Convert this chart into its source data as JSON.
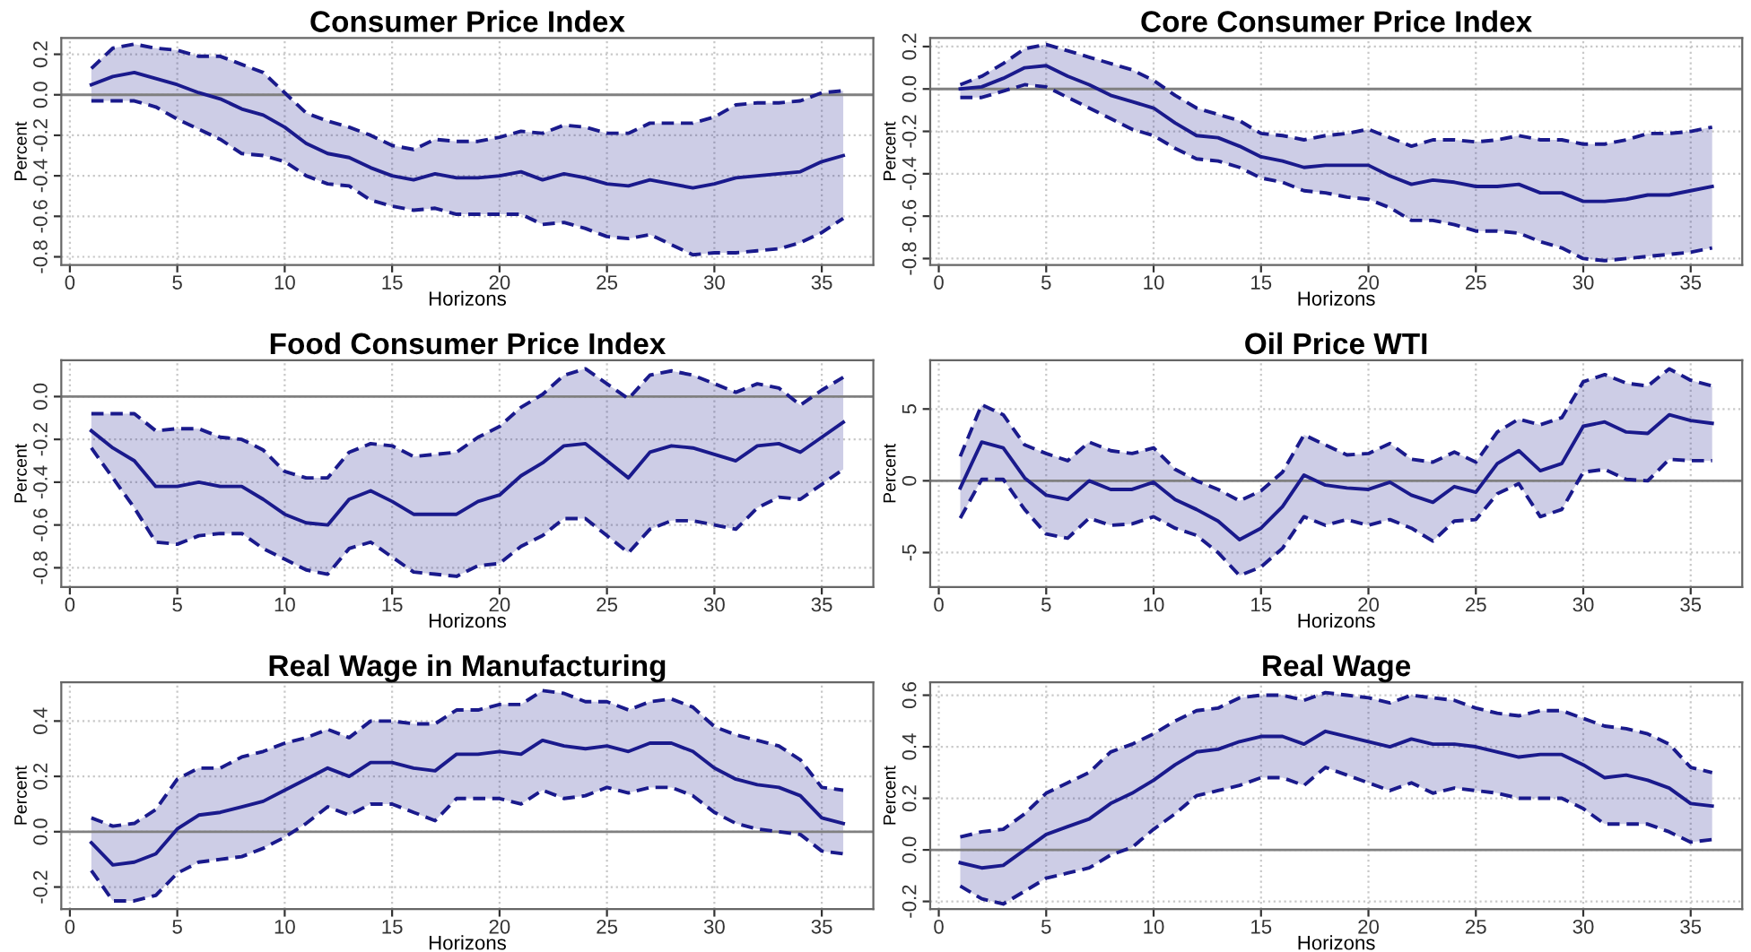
{
  "chart_data": [
    {
      "type": "line",
      "title": "Consumer Price Index",
      "xlabel": "Horizons",
      "ylabel": "Percent",
      "grid": true,
      "xlim": [
        -0.4,
        37.4
      ],
      "xticks": [
        0,
        5,
        10,
        15,
        20,
        25,
        30,
        35
      ],
      "ylim": [
        -0.84,
        0.28
      ],
      "yticks": [
        {
          "value": -0.8,
          "label": "-0.8"
        },
        {
          "value": -0.6,
          "label": "-0.6"
        },
        {
          "value": -0.4,
          "label": "-0.4"
        },
        {
          "value": -0.2,
          "label": "-0.2"
        },
        {
          "value": 0,
          "label": "0.0"
        },
        {
          "value": 0.2,
          "label": "0.2"
        }
      ],
      "ref_lines": [
        {
          "axis": "y",
          "value": 0,
          "color": "#808080"
        }
      ],
      "x": [
        1,
        2,
        3,
        4,
        5,
        6,
        7,
        8,
        9,
        10,
        11,
        12,
        13,
        14,
        15,
        16,
        17,
        18,
        19,
        20,
        21,
        22,
        23,
        24,
        25,
        26,
        27,
        28,
        29,
        30,
        31,
        32,
        33,
        34,
        35,
        36
      ],
      "series": [
        {
          "color": "#1a1a8c",
          "line_style": "solid",
          "values": [
            0.05,
            0.09,
            0.11,
            0.08,
            0.05,
            0.01,
            -0.02,
            -0.07,
            -0.1,
            -0.16,
            -0.24,
            -0.29,
            -0.31,
            -0.36,
            -0.4,
            -0.42,
            -0.39,
            -0.41,
            -0.41,
            -0.4,
            -0.38,
            -0.42,
            -0.39,
            -0.41,
            -0.44,
            -0.45,
            -0.42,
            -0.44,
            -0.46,
            -0.44,
            -0.41,
            -0.4,
            -0.39,
            -0.38,
            -0.33,
            -0.3
          ],
          "upper": [
            0.13,
            0.23,
            0.25,
            0.23,
            0.22,
            0.19,
            0.19,
            0.15,
            0.11,
            0.01,
            -0.09,
            -0.13,
            -0.16,
            -0.2,
            -0.25,
            -0.27,
            -0.22,
            -0.23,
            -0.23,
            -0.21,
            -0.18,
            -0.19,
            -0.15,
            -0.16,
            -0.19,
            -0.19,
            -0.14,
            -0.14,
            -0.14,
            -0.11,
            -0.05,
            -0.04,
            -0.04,
            -0.03,
            0.01,
            0.02
          ],
          "lower": [
            -0.03,
            -0.03,
            -0.03,
            -0.06,
            -0.12,
            -0.17,
            -0.22,
            -0.29,
            -0.3,
            -0.33,
            -0.4,
            -0.44,
            -0.45,
            -0.52,
            -0.55,
            -0.57,
            -0.56,
            -0.59,
            -0.59,
            -0.59,
            -0.59,
            -0.64,
            -0.63,
            -0.66,
            -0.7,
            -0.71,
            -0.69,
            -0.74,
            -0.79,
            -0.78,
            -0.78,
            -0.77,
            -0.76,
            -0.73,
            -0.68,
            -0.61
          ]
        },
        {
          "color": "#1a1a8c",
          "line_style": "dashed",
          "values": [
            0.13,
            0.23,
            0.25,
            0.23,
            0.22,
            0.19,
            0.19,
            0.15,
            0.11,
            0.01,
            -0.09,
            -0.13,
            -0.16,
            -0.2,
            -0.25,
            -0.27,
            -0.22,
            -0.23,
            -0.23,
            -0.21,
            -0.18,
            -0.19,
            -0.15,
            -0.16,
            -0.19,
            -0.19,
            -0.14,
            -0.14,
            -0.14,
            -0.11,
            -0.05,
            -0.04,
            -0.04,
            -0.03,
            0.01,
            0.02
          ]
        },
        {
          "color": "#1a1a8c",
          "line_style": "dashed",
          "values": [
            -0.03,
            -0.03,
            -0.03,
            -0.06,
            -0.12,
            -0.17,
            -0.22,
            -0.29,
            -0.3,
            -0.33,
            -0.4,
            -0.44,
            -0.45,
            -0.52,
            -0.55,
            -0.57,
            -0.56,
            -0.59,
            -0.59,
            -0.59,
            -0.59,
            -0.64,
            -0.63,
            -0.66,
            -0.7,
            -0.71,
            -0.69,
            -0.74,
            -0.79,
            -0.78,
            -0.78,
            -0.77,
            -0.76,
            -0.73,
            -0.68,
            -0.61
          ]
        }
      ]
    },
    {
      "type": "line",
      "title": "Core Consumer Price Index",
      "xlabel": "Horizons",
      "ylabel": "Percent",
      "grid": true,
      "xlim": [
        -0.4,
        37.4
      ],
      "xticks": [
        0,
        5,
        10,
        15,
        20,
        25,
        30,
        35
      ],
      "ylim": [
        -0.83,
        0.24
      ],
      "yticks": [
        {
          "value": -0.8,
          "label": "-0.8"
        },
        {
          "value": -0.6,
          "label": "-0.6"
        },
        {
          "value": -0.4,
          "label": "-0.4"
        },
        {
          "value": -0.2,
          "label": "-0.2"
        },
        {
          "value": 0,
          "label": "0.0"
        },
        {
          "value": 0.2,
          "label": "0.2"
        }
      ],
      "ref_lines": [
        {
          "axis": "y",
          "value": 0,
          "color": "#808080"
        }
      ],
      "x": [
        1,
        2,
        3,
        4,
        5,
        6,
        7,
        8,
        9,
        10,
        11,
        12,
        13,
        14,
        15,
        16,
        17,
        18,
        19,
        20,
        21,
        22,
        23,
        24,
        25,
        26,
        27,
        28,
        29,
        30,
        31,
        32,
        33,
        34,
        35,
        36
      ],
      "series": [
        {
          "color": "#1a1a8c",
          "line_style": "solid",
          "values": [
            0.0,
            0.01,
            0.05,
            0.1,
            0.11,
            0.06,
            0.02,
            -0.03,
            -0.06,
            -0.09,
            -0.16,
            -0.22,
            -0.23,
            -0.27,
            -0.32,
            -0.34,
            -0.37,
            -0.36,
            -0.36,
            -0.36,
            -0.41,
            -0.45,
            -0.43,
            -0.44,
            -0.46,
            -0.46,
            -0.45,
            -0.49,
            -0.49,
            -0.53,
            -0.53,
            -0.52,
            -0.5,
            -0.5,
            -0.48,
            -0.46
          ],
          "upper": [
            0.02,
            0.06,
            0.12,
            0.19,
            0.21,
            0.18,
            0.15,
            0.12,
            0.09,
            0.04,
            -0.03,
            -0.09,
            -0.12,
            -0.15,
            -0.21,
            -0.22,
            -0.24,
            -0.22,
            -0.21,
            -0.19,
            -0.23,
            -0.27,
            -0.24,
            -0.24,
            -0.25,
            -0.24,
            -0.22,
            -0.24,
            -0.24,
            -0.26,
            -0.26,
            -0.24,
            -0.21,
            -0.21,
            -0.2,
            -0.18
          ],
          "lower": [
            -0.04,
            -0.04,
            -0.01,
            0.02,
            0.01,
            -0.04,
            -0.09,
            -0.14,
            -0.19,
            -0.22,
            -0.28,
            -0.33,
            -0.34,
            -0.37,
            -0.42,
            -0.44,
            -0.48,
            -0.49,
            -0.51,
            -0.52,
            -0.56,
            -0.62,
            -0.62,
            -0.64,
            -0.67,
            -0.67,
            -0.68,
            -0.72,
            -0.75,
            -0.8,
            -0.81,
            -0.8,
            -0.79,
            -0.78,
            -0.77,
            -0.75
          ]
        },
        {
          "color": "#1a1a8c",
          "line_style": "dashed",
          "values": [
            0.02,
            0.06,
            0.12,
            0.19,
            0.21,
            0.18,
            0.15,
            0.12,
            0.09,
            0.04,
            -0.03,
            -0.09,
            -0.12,
            -0.15,
            -0.21,
            -0.22,
            -0.24,
            -0.22,
            -0.21,
            -0.19,
            -0.23,
            -0.27,
            -0.24,
            -0.24,
            -0.25,
            -0.24,
            -0.22,
            -0.24,
            -0.24,
            -0.26,
            -0.26,
            -0.24,
            -0.21,
            -0.21,
            -0.2,
            -0.18
          ]
        },
        {
          "color": "#1a1a8c",
          "line_style": "dashed",
          "values": [
            -0.04,
            -0.04,
            -0.01,
            0.02,
            0.01,
            -0.04,
            -0.09,
            -0.14,
            -0.19,
            -0.22,
            -0.28,
            -0.33,
            -0.34,
            -0.37,
            -0.42,
            -0.44,
            -0.48,
            -0.49,
            -0.51,
            -0.52,
            -0.56,
            -0.62,
            -0.62,
            -0.64,
            -0.67,
            -0.67,
            -0.68,
            -0.72,
            -0.75,
            -0.8,
            -0.81,
            -0.8,
            -0.79,
            -0.78,
            -0.77,
            -0.75
          ]
        }
      ]
    },
    {
      "type": "line",
      "title": "Food Consumer Price Index",
      "xlabel": "Horizons",
      "ylabel": "Percent",
      "grid": true,
      "xlim": [
        -0.4,
        37.4
      ],
      "xticks": [
        0,
        5,
        10,
        15,
        20,
        25,
        30,
        35
      ],
      "ylim": [
        -0.89,
        0.17
      ],
      "yticks": [
        {
          "value": -0.8,
          "label": "-0.8"
        },
        {
          "value": -0.6,
          "label": "-0.6"
        },
        {
          "value": -0.4,
          "label": "-0.4"
        },
        {
          "value": -0.2,
          "label": "-0.2"
        },
        {
          "value": 0,
          "label": "0.0"
        }
      ],
      "ref_lines": [
        {
          "axis": "y",
          "value": 0,
          "color": "#808080"
        }
      ],
      "x": [
        1,
        2,
        3,
        4,
        5,
        6,
        7,
        8,
        9,
        10,
        11,
        12,
        13,
        14,
        15,
        16,
        17,
        18,
        19,
        20,
        21,
        22,
        23,
        24,
        25,
        26,
        27,
        28,
        29,
        30,
        31,
        32,
        33,
        34,
        35,
        36
      ],
      "series": [
        {
          "color": "#1a1a8c",
          "line_style": "solid",
          "values": [
            -0.16,
            -0.24,
            -0.3,
            -0.42,
            -0.42,
            -0.4,
            -0.42,
            -0.42,
            -0.48,
            -0.55,
            -0.59,
            -0.6,
            -0.48,
            -0.44,
            -0.49,
            -0.55,
            -0.55,
            -0.55,
            -0.49,
            -0.46,
            -0.37,
            -0.31,
            -0.23,
            -0.22,
            -0.3,
            -0.38,
            -0.26,
            -0.23,
            -0.24,
            -0.27,
            -0.3,
            -0.23,
            -0.22,
            -0.26,
            -0.19,
            -0.12
          ],
          "upper": [
            -0.08,
            -0.08,
            -0.08,
            -0.16,
            -0.15,
            -0.15,
            -0.19,
            -0.2,
            -0.25,
            -0.35,
            -0.38,
            -0.38,
            -0.26,
            -0.22,
            -0.23,
            -0.28,
            -0.27,
            -0.26,
            -0.19,
            -0.14,
            -0.05,
            0.01,
            0.1,
            0.13,
            0.06,
            -0.01,
            0.1,
            0.12,
            0.1,
            0.06,
            0.02,
            0.06,
            0.04,
            -0.04,
            0.03,
            0.09
          ],
          "lower": [
            -0.24,
            -0.38,
            -0.52,
            -0.68,
            -0.69,
            -0.65,
            -0.64,
            -0.64,
            -0.71,
            -0.76,
            -0.81,
            -0.83,
            -0.71,
            -0.68,
            -0.75,
            -0.82,
            -0.83,
            -0.84,
            -0.79,
            -0.78,
            -0.7,
            -0.65,
            -0.57,
            -0.57,
            -0.65,
            -0.73,
            -0.62,
            -0.58,
            -0.58,
            -0.6,
            -0.62,
            -0.52,
            -0.47,
            -0.48,
            -0.41,
            -0.34
          ]
        },
        {
          "color": "#1a1a8c",
          "line_style": "dashed",
          "values": [
            -0.08,
            -0.08,
            -0.08,
            -0.16,
            -0.15,
            -0.15,
            -0.19,
            -0.2,
            -0.25,
            -0.35,
            -0.38,
            -0.38,
            -0.26,
            -0.22,
            -0.23,
            -0.28,
            -0.27,
            -0.26,
            -0.19,
            -0.14,
            -0.05,
            0.01,
            0.1,
            0.13,
            0.06,
            -0.01,
            0.1,
            0.12,
            0.1,
            0.06,
            0.02,
            0.06,
            0.04,
            -0.04,
            0.03,
            0.09
          ]
        },
        {
          "color": "#1a1a8c",
          "line_style": "dashed",
          "values": [
            -0.24,
            -0.38,
            -0.52,
            -0.68,
            -0.69,
            -0.65,
            -0.64,
            -0.64,
            -0.71,
            -0.76,
            -0.81,
            -0.83,
            -0.71,
            -0.68,
            -0.75,
            -0.82,
            -0.83,
            -0.84,
            -0.79,
            -0.78,
            -0.7,
            -0.65,
            -0.57,
            -0.57,
            -0.65,
            -0.73,
            -0.62,
            -0.58,
            -0.58,
            -0.6,
            -0.62,
            -0.52,
            -0.47,
            -0.48,
            -0.41,
            -0.34
          ]
        }
      ]
    },
    {
      "type": "line",
      "title": "Oil Price WTI",
      "xlabel": "Horizons",
      "ylabel": "Percent",
      "grid": true,
      "xlim": [
        -0.4,
        37.4
      ],
      "xticks": [
        0,
        5,
        10,
        15,
        20,
        25,
        30,
        35
      ],
      "ylim": [
        -7.4,
        8.4
      ],
      "yticks": [
        {
          "value": -5,
          "label": "-5"
        },
        0,
        5
      ],
      "ref_lines": [
        {
          "axis": "y",
          "value": 0,
          "color": "#808080"
        }
      ],
      "x": [
        1,
        2,
        3,
        4,
        5,
        6,
        7,
        8,
        9,
        10,
        11,
        12,
        13,
        14,
        15,
        16,
        17,
        18,
        19,
        20,
        21,
        22,
        23,
        24,
        25,
        26,
        27,
        28,
        29,
        30,
        31,
        32,
        33,
        34,
        35,
        36
      ],
      "series": [
        {
          "color": "#1a1a8c",
          "line_style": "solid",
          "values": [
            -0.5,
            2.7,
            2.3,
            0.2,
            -1.0,
            -1.3,
            0.0,
            -0.6,
            -0.6,
            -0.1,
            -1.3,
            -2.0,
            -2.8,
            -4.1,
            -3.3,
            -1.8,
            0.4,
            -0.3,
            -0.5,
            -0.6,
            -0.1,
            -1.0,
            -1.5,
            -0.4,
            -0.8,
            1.2,
            2.1,
            0.7,
            1.2,
            3.8,
            4.1,
            3.4,
            3.3,
            4.6,
            4.2,
            4.0
          ],
          "upper": [
            1.7,
            5.3,
            4.6,
            2.5,
            1.9,
            1.4,
            2.7,
            2.1,
            1.9,
            2.3,
            0.8,
            0.0,
            -0.6,
            -1.4,
            -0.7,
            0.6,
            3.2,
            2.5,
            1.8,
            1.9,
            2.6,
            1.5,
            1.3,
            2.0,
            1.3,
            3.4,
            4.3,
            3.9,
            4.4,
            6.9,
            7.4,
            6.8,
            6.6,
            7.8,
            7.0,
            6.6
          ],
          "lower": [
            -2.6,
            0.1,
            0.1,
            -2.0,
            -3.7,
            -4.0,
            -2.6,
            -3.1,
            -3.0,
            -2.5,
            -3.3,
            -3.8,
            -5.0,
            -6.6,
            -6.0,
            -4.7,
            -2.5,
            -3.1,
            -2.7,
            -3.1,
            -2.7,
            -3.3,
            -4.2,
            -2.8,
            -2.7,
            -0.9,
            -0.2,
            -2.5,
            -2.0,
            0.6,
            0.8,
            0.1,
            0.0,
            1.5,
            1.4,
            1.4
          ]
        },
        {
          "color": "#1a1a8c",
          "line_style": "dashed",
          "values": [
            1.7,
            5.3,
            4.6,
            2.5,
            1.9,
            1.4,
            2.7,
            2.1,
            1.9,
            2.3,
            0.8,
            0.0,
            -0.6,
            -1.4,
            -0.7,
            0.6,
            3.2,
            2.5,
            1.8,
            1.9,
            2.6,
            1.5,
            1.3,
            2.0,
            1.3,
            3.4,
            4.3,
            3.9,
            4.4,
            6.9,
            7.4,
            6.8,
            6.6,
            7.8,
            7.0,
            6.6
          ]
        },
        {
          "color": "#1a1a8c",
          "line_style": "dashed",
          "values": [
            -2.6,
            0.1,
            0.1,
            -2.0,
            -3.7,
            -4.0,
            -2.6,
            -3.1,
            -3.0,
            -2.5,
            -3.3,
            -3.8,
            -5.0,
            -6.6,
            -6.0,
            -4.7,
            -2.5,
            -3.1,
            -2.7,
            -3.1,
            -2.7,
            -3.3,
            -4.2,
            -2.8,
            -2.7,
            -0.9,
            -0.2,
            -2.5,
            -2.0,
            0.6,
            0.8,
            0.1,
            0.0,
            1.5,
            1.4,
            1.4
          ]
        }
      ]
    },
    {
      "type": "line",
      "title": "Real Wage in Manufacturing",
      "xlabel": "Horizons",
      "ylabel": "Percent",
      "grid": true,
      "xlim": [
        -0.4,
        37.4
      ],
      "xticks": [
        0,
        5,
        10,
        15,
        20,
        25,
        30,
        35
      ],
      "ylim": [
        -0.28,
        0.54
      ],
      "yticks": [
        {
          "value": -0.2,
          "label": "-0.2"
        },
        {
          "value": 0,
          "label": "0.0"
        },
        0.2,
        0.4
      ],
      "ref_lines": [
        {
          "axis": "y",
          "value": 0,
          "color": "#808080"
        }
      ],
      "x": [
        1,
        2,
        3,
        4,
        5,
        6,
        7,
        8,
        9,
        10,
        11,
        12,
        13,
        14,
        15,
        16,
        17,
        18,
        19,
        20,
        21,
        22,
        23,
        24,
        25,
        26,
        27,
        28,
        29,
        30,
        31,
        32,
        33,
        34,
        35,
        36
      ],
      "series": [
        {
          "color": "#1a1a8c",
          "line_style": "solid",
          "values": [
            -0.04,
            -0.12,
            -0.11,
            -0.08,
            0.01,
            0.06,
            0.07,
            0.09,
            0.11,
            0.15,
            0.19,
            0.23,
            0.2,
            0.25,
            0.25,
            0.23,
            0.22,
            0.28,
            0.28,
            0.29,
            0.28,
            0.33,
            0.31,
            0.3,
            0.31,
            0.29,
            0.32,
            0.32,
            0.29,
            0.23,
            0.19,
            0.17,
            0.16,
            0.13,
            0.05,
            0.03
          ],
          "upper": [
            0.05,
            0.02,
            0.03,
            0.08,
            0.19,
            0.23,
            0.23,
            0.27,
            0.29,
            0.32,
            0.34,
            0.37,
            0.34,
            0.4,
            0.4,
            0.39,
            0.39,
            0.44,
            0.44,
            0.46,
            0.46,
            0.51,
            0.5,
            0.47,
            0.47,
            0.44,
            0.47,
            0.48,
            0.45,
            0.38,
            0.35,
            0.33,
            0.31,
            0.26,
            0.16,
            0.15
          ],
          "lower": [
            -0.14,
            -0.25,
            -0.25,
            -0.23,
            -0.15,
            -0.11,
            -0.1,
            -0.09,
            -0.06,
            -0.02,
            0.03,
            0.09,
            0.06,
            0.1,
            0.1,
            0.07,
            0.04,
            0.12,
            0.12,
            0.12,
            0.1,
            0.15,
            0.12,
            0.13,
            0.16,
            0.14,
            0.16,
            0.16,
            0.13,
            0.07,
            0.03,
            0.01,
            0.0,
            -0.01,
            -0.07,
            -0.08
          ]
        },
        {
          "color": "#1a1a8c",
          "line_style": "dashed",
          "values": [
            0.05,
            0.02,
            0.03,
            0.08,
            0.19,
            0.23,
            0.23,
            0.27,
            0.29,
            0.32,
            0.34,
            0.37,
            0.34,
            0.4,
            0.4,
            0.39,
            0.39,
            0.44,
            0.44,
            0.46,
            0.46,
            0.51,
            0.5,
            0.47,
            0.47,
            0.44,
            0.47,
            0.48,
            0.45,
            0.38,
            0.35,
            0.33,
            0.31,
            0.26,
            0.16,
            0.15
          ]
        },
        {
          "color": "#1a1a8c",
          "line_style": "dashed",
          "values": [
            -0.14,
            -0.25,
            -0.25,
            -0.23,
            -0.15,
            -0.11,
            -0.1,
            -0.09,
            -0.06,
            -0.02,
            0.03,
            0.09,
            0.06,
            0.1,
            0.1,
            0.07,
            0.04,
            0.12,
            0.12,
            0.12,
            0.1,
            0.15,
            0.12,
            0.13,
            0.16,
            0.14,
            0.16,
            0.16,
            0.13,
            0.07,
            0.03,
            0.01,
            0.0,
            -0.01,
            -0.07,
            -0.08
          ]
        }
      ]
    },
    {
      "type": "line",
      "title": "Real Wage",
      "xlabel": "Horizons",
      "ylabel": "Percent",
      "grid": true,
      "xlim": [
        -0.4,
        37.4
      ],
      "xticks": [
        0,
        5,
        10,
        15,
        20,
        25,
        30,
        35
      ],
      "ylim": [
        -0.23,
        0.65
      ],
      "yticks": [
        {
          "value": -0.2,
          "label": "-0.2"
        },
        {
          "value": 0,
          "label": "0.0"
        },
        0.2,
        0.4,
        0.6
      ],
      "ref_lines": [
        {
          "axis": "y",
          "value": 0,
          "color": "#808080"
        }
      ],
      "x": [
        1,
        2,
        3,
        4,
        5,
        6,
        7,
        8,
        9,
        10,
        11,
        12,
        13,
        14,
        15,
        16,
        17,
        18,
        19,
        20,
        21,
        22,
        23,
        24,
        25,
        26,
        27,
        28,
        29,
        30,
        31,
        32,
        33,
        34,
        35,
        36
      ],
      "series": [
        {
          "color": "#1a1a8c",
          "line_style": "solid",
          "values": [
            -0.05,
            -0.07,
            -0.06,
            0.0,
            0.06,
            0.09,
            0.12,
            0.18,
            0.22,
            0.27,
            0.33,
            0.38,
            0.39,
            0.42,
            0.44,
            0.44,
            0.41,
            0.46,
            0.44,
            0.42,
            0.4,
            0.43,
            0.41,
            0.41,
            0.4,
            0.38,
            0.36,
            0.37,
            0.37,
            0.33,
            0.28,
            0.29,
            0.27,
            0.24,
            0.18,
            0.17
          ],
          "upper": [
            0.05,
            0.07,
            0.08,
            0.14,
            0.22,
            0.26,
            0.3,
            0.38,
            0.41,
            0.45,
            0.5,
            0.54,
            0.55,
            0.59,
            0.6,
            0.6,
            0.58,
            0.61,
            0.6,
            0.59,
            0.57,
            0.6,
            0.59,
            0.58,
            0.55,
            0.53,
            0.52,
            0.54,
            0.54,
            0.51,
            0.48,
            0.47,
            0.45,
            0.41,
            0.32,
            0.3
          ],
          "lower": [
            -0.14,
            -0.19,
            -0.21,
            -0.16,
            -0.11,
            -0.09,
            -0.07,
            -0.02,
            0.01,
            0.08,
            0.14,
            0.21,
            0.23,
            0.25,
            0.28,
            0.28,
            0.25,
            0.32,
            0.29,
            0.26,
            0.23,
            0.26,
            0.22,
            0.24,
            0.23,
            0.22,
            0.2,
            0.2,
            0.2,
            0.16,
            0.1,
            0.1,
            0.1,
            0.07,
            0.03,
            0.04
          ]
        },
        {
          "color": "#1a1a8c",
          "line_style": "dashed",
          "values": [
            0.05,
            0.07,
            0.08,
            0.14,
            0.22,
            0.26,
            0.3,
            0.38,
            0.41,
            0.45,
            0.5,
            0.54,
            0.55,
            0.59,
            0.6,
            0.6,
            0.58,
            0.61,
            0.6,
            0.59,
            0.57,
            0.6,
            0.59,
            0.58,
            0.55,
            0.53,
            0.52,
            0.54,
            0.54,
            0.51,
            0.48,
            0.47,
            0.45,
            0.41,
            0.32,
            0.3
          ]
        },
        {
          "color": "#1a1a8c",
          "line_style": "dashed",
          "values": [
            -0.14,
            -0.19,
            -0.21,
            -0.16,
            -0.11,
            -0.09,
            -0.07,
            -0.02,
            0.01,
            0.08,
            0.14,
            0.21,
            0.23,
            0.25,
            0.28,
            0.28,
            0.25,
            0.32,
            0.29,
            0.26,
            0.23,
            0.26,
            0.22,
            0.24,
            0.23,
            0.22,
            0.2,
            0.2,
            0.2,
            0.16,
            0.1,
            0.1,
            0.1,
            0.07,
            0.03,
            0.04
          ]
        }
      ]
    }
  ]
}
